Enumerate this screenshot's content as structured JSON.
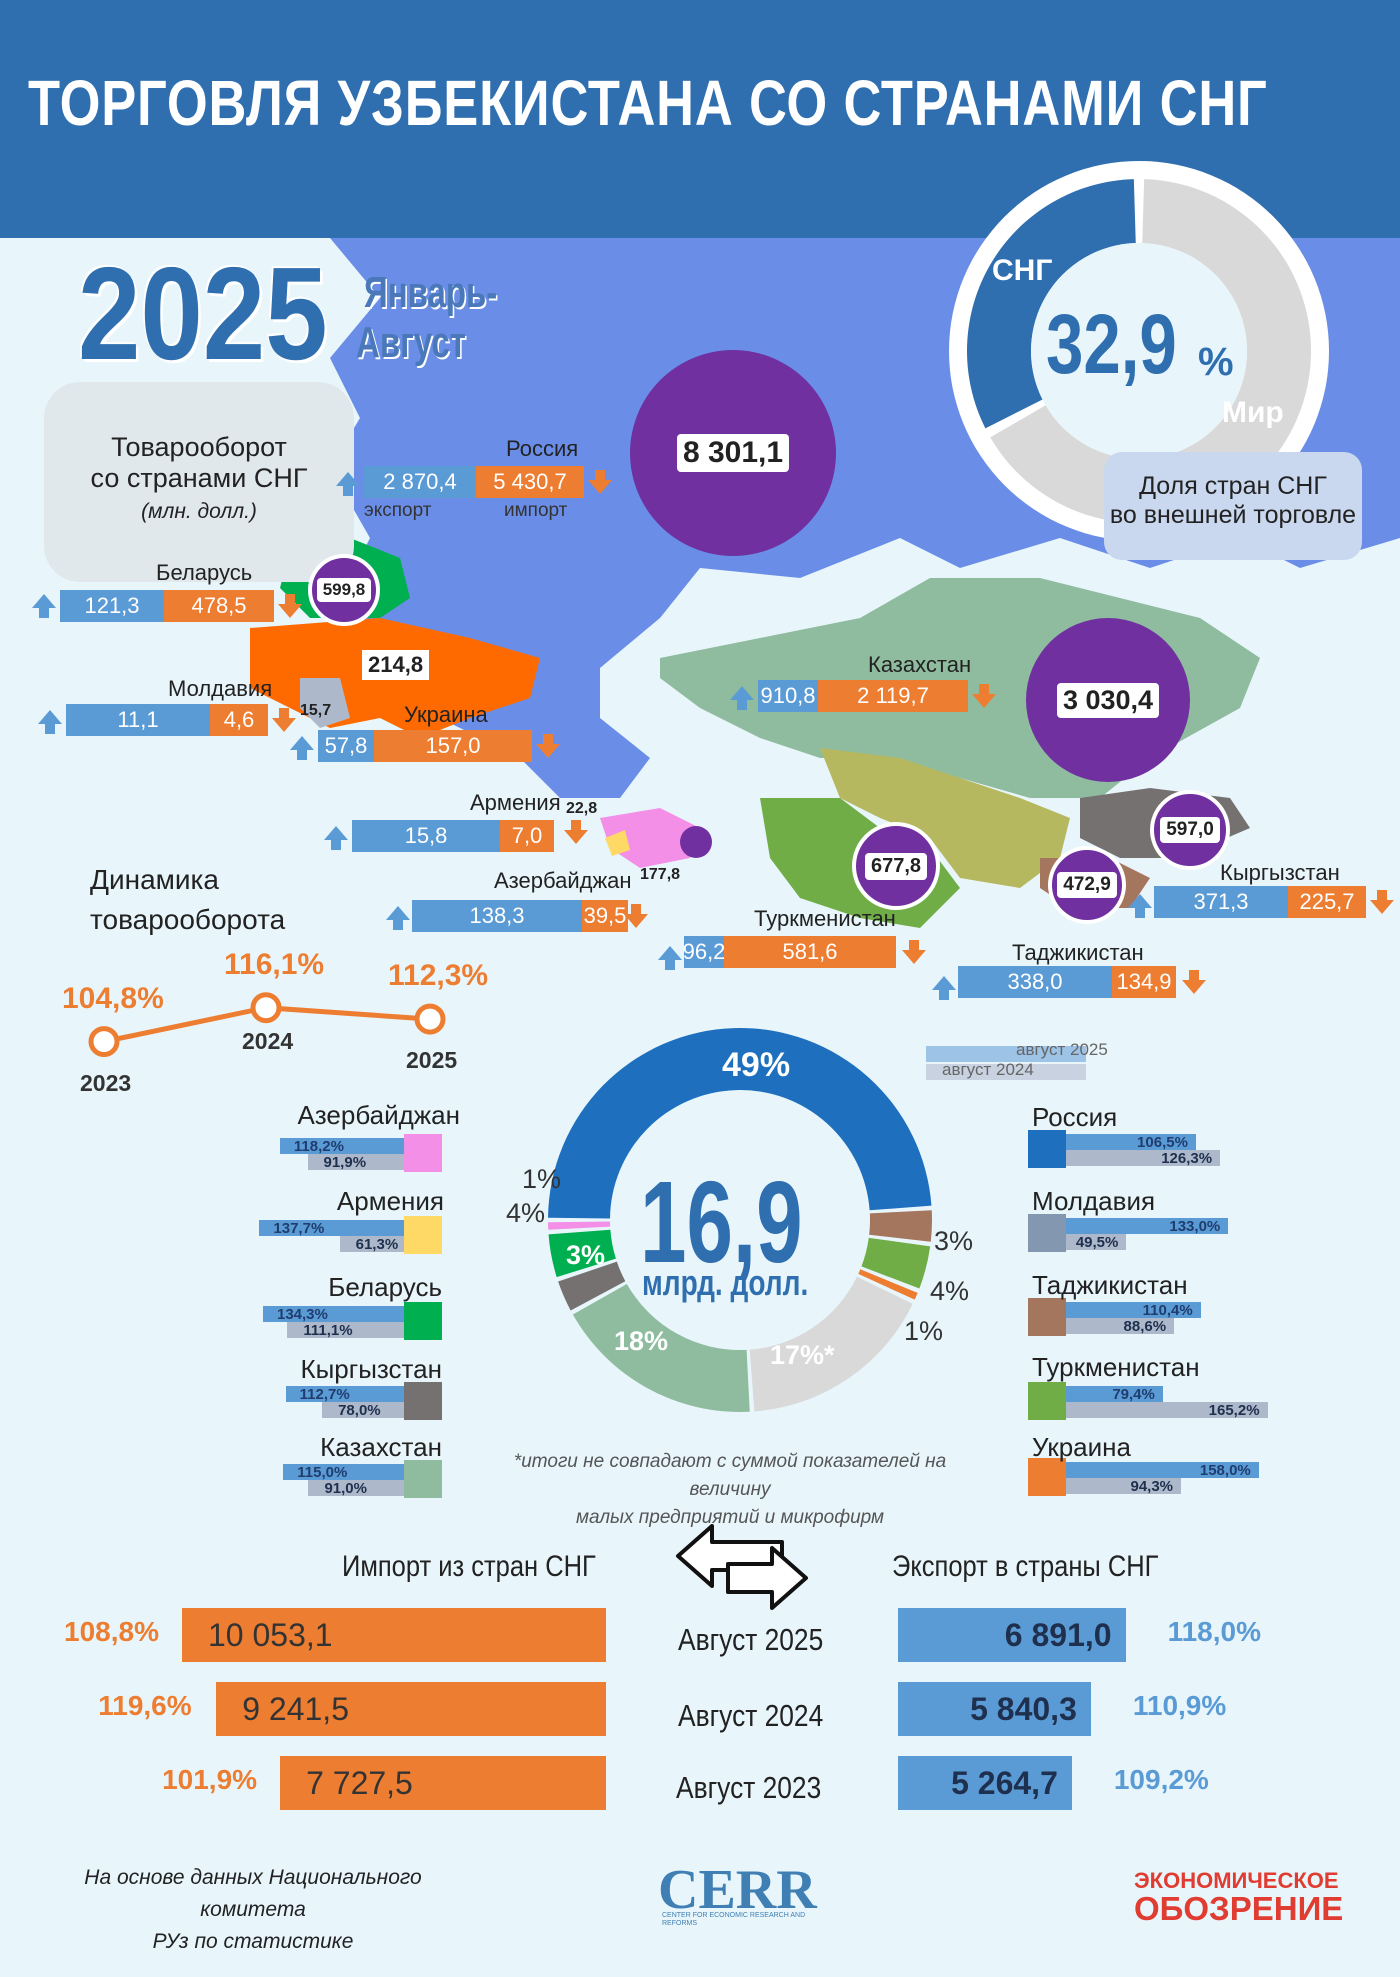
{
  "header": {
    "title": "ТОРГОВЛЯ УЗБЕКИСТАНА СО СТРАНАМИ СНГ"
  },
  "period": {
    "year": "2025",
    "line1": "Январь-",
    "line2": "Август"
  },
  "turnover_box": {
    "line1": "Товарооборот",
    "line2": "со странами СНГ",
    "unit": "(млн. долл.)"
  },
  "legend_words": {
    "export": "экспорт",
    "import": "импорт"
  },
  "share": {
    "cis_label": "СНГ",
    "world_label": "Мир",
    "value": "32,9",
    "unit": "%",
    "caption1": "Доля стран СНГ",
    "caption2": "во внешней торговле",
    "cis_fraction": 0.329,
    "cis_color": "#2f6fb0",
    "world_color": "#d9d9d9"
  },
  "countries": {
    "russia": {
      "name": "Россия",
      "export": "2 870,4",
      "import": "5 430,7",
      "total": "8 301,1"
    },
    "belarus": {
      "name": "Беларусь",
      "export": "121,3",
      "import": "478,5",
      "total": "599,8"
    },
    "moldova": {
      "name": "Молдавия",
      "export": "11,1",
      "import": "4,6",
      "total": "15,7"
    },
    "ukraine": {
      "name": "Украина",
      "export": "57,8",
      "import": "157,0",
      "total": "214,8"
    },
    "armenia": {
      "name": "Армения",
      "export": "15,8",
      "import": "7,0",
      "total": "22,8"
    },
    "azerbaijan": {
      "name": "Азербайджан",
      "export": "138,3",
      "import": "39,5",
      "total": "177,8"
    },
    "kazakhstan": {
      "name": "Казахстан",
      "export": "910,8",
      "import": "2 119,7",
      "total": "3 030,4"
    },
    "turkmenistan": {
      "name": "Туркменистан",
      "export": "96,2",
      "import": "581,6",
      "total": "677,8"
    },
    "kyrgyzstan": {
      "name": "Кыргызстан",
      "export": "371,3",
      "import": "225,7",
      "total": "597,0"
    },
    "tajikistan": {
      "name": "Таджикистан",
      "export": "338,0",
      "import": "134,9",
      "total": "472,9"
    }
  },
  "dynamics": {
    "title1": "Динамика",
    "title2": "товарооборота",
    "points": [
      {
        "year": "2023",
        "label": "104,8%",
        "value": 104.8
      },
      {
        "year": "2024",
        "label": "116,1%",
        "value": 116.1
      },
      {
        "year": "2025",
        "label": "112,3%",
        "value": 112.3
      }
    ]
  },
  "comparison_legend": {
    "current": "август 2025",
    "previous": "август 2024"
  },
  "comparison_left": [
    {
      "name": "Азербайджан",
      "current": "118,2%",
      "previous": "91,9%",
      "cur": 118.2,
      "prev": 91.9,
      "color": "#f48fe8"
    },
    {
      "name": "Армения",
      "current": "137,7%",
      "previous": "61,3%",
      "cur": 137.7,
      "prev": 61.3,
      "color": "#ffd966"
    },
    {
      "name": "Беларусь",
      "current": "134,3%",
      "previous": "111,1%",
      "cur": 134.3,
      "prev": 111.1,
      "color": "#00b050"
    },
    {
      "name": "Кыргызстан",
      "current": "112,7%",
      "previous": "78,0%",
      "cur": 112.7,
      "prev": 78.0,
      "color": "#767171"
    },
    {
      "name": "Казахстан",
      "current": "115,0%",
      "previous": "91,0%",
      "cur": 115.0,
      "prev": 91.0,
      "color": "#8fbc9e"
    }
  ],
  "comparison_right": [
    {
      "name": "Россия",
      "current": "106,5%",
      "previous": "126,3%",
      "cur": 106.5,
      "prev": 126.3,
      "color": "#1f6fbf"
    },
    {
      "name": "Молдавия",
      "current": "133,0%",
      "previous": "49,5%",
      "cur": 133.0,
      "prev": 49.5,
      "color": "#8497b0"
    },
    {
      "name": "Таджикистан",
      "current": "110,4%",
      "previous": "88,6%",
      "cur": 110.4,
      "prev": 88.6,
      "color": "#a5765e"
    },
    {
      "name": "Туркменистан",
      "current": "79,4%",
      "previous": "165,2%",
      "cur": 79.4,
      "prev": 165.2,
      "color": "#70ad47"
    },
    {
      "name": "Украина",
      "current": "158,0%",
      "previous": "94,3%",
      "cur": 158.0,
      "prev": 94.3,
      "color": "#ed7d31"
    }
  ],
  "structure": {
    "total": "16,9",
    "unit": "млрд. долл.",
    "slices": [
      {
        "label": "49%",
        "value": 49,
        "color": "#1f6fbf"
      },
      {
        "label": "3%",
        "value": 3,
        "color": "#a5765e"
      },
      {
        "label": "4%",
        "value": 4,
        "color": "#70ad47"
      },
      {
        "label": "1%",
        "value": 1,
        "color": "#ed7d31"
      },
      {
        "label": "17%*",
        "value": 17,
        "color": "#d9d9d9"
      },
      {
        "label": "18%",
        "value": 18,
        "color": "#8fbc9e"
      },
      {
        "label": "3%",
        "value": 3,
        "color": "#767171"
      },
      {
        "label": "4%",
        "value": 4,
        "color": "#00b050"
      },
      {
        "label": "1%",
        "value": 1,
        "color": "#f48fe8"
      }
    ],
    "footnote1": "*итоги не совпадают с суммой показателей на величину",
    "footnote2": "малых предприятий и микрофирм"
  },
  "chart_data": {
    "type": "bar",
    "title": "",
    "categories": [
      "Август 2025",
      "Август 2024",
      "Август 2023"
    ],
    "series": [
      {
        "name": "Импорт из стран СНГ",
        "values": [
          10053.1,
          9241.5,
          7727.5
        ],
        "labels": [
          "10 053,1",
          "9 241,5",
          "7 727,5"
        ],
        "growth": [
          "108,8%",
          "119,6%",
          "101,9%"
        ]
      },
      {
        "name": "Экспорт в страны СНГ",
        "values": [
          6891.0,
          5840.3,
          5264.7
        ],
        "labels": [
          "6 891,0",
          "5 840,3",
          "5 264,7"
        ],
        "growth": [
          "118,0%",
          "110,9%",
          "109,2%"
        ]
      }
    ]
  },
  "footer": {
    "source1": "На основе данных Национального комитета",
    "source2": "РУз по статистике",
    "logo_cerr": "CERR",
    "logo_cerr_sub": "CENTER FOR ECONOMIC RESEARCH AND REFORMS",
    "logo_eo1": "ЭКОНОМИЧЕСКОЕ",
    "logo_eo2": "ОБОЗРЕНИЕ"
  },
  "icons": [
    "up-arrow-icon",
    "down-arrow-icon",
    "swap-arrows-icon"
  ]
}
